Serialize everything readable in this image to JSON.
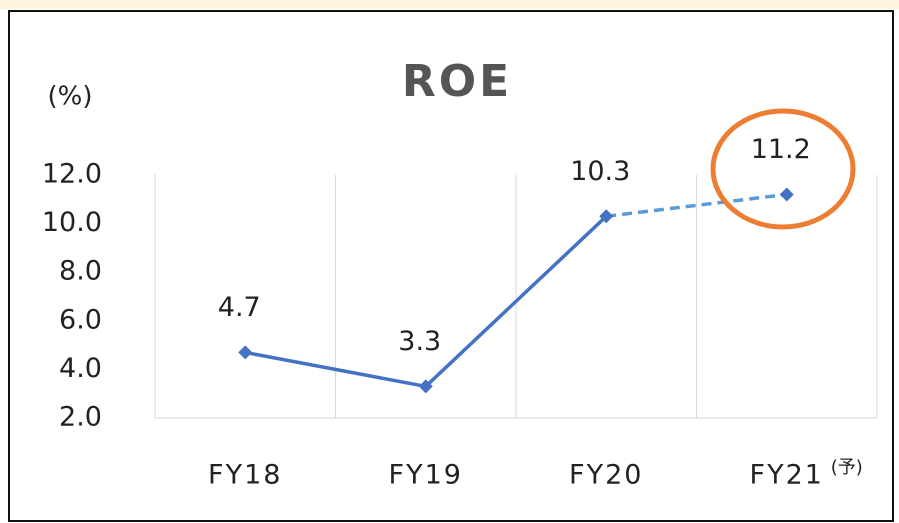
{
  "chart_data": {
    "type": "line",
    "title": "ROE",
    "y_axis_label": "(%)",
    "categories": [
      "FY18",
      "FY19",
      "FY20",
      "FY21"
    ],
    "forecast_mark": "(予)",
    "series": [
      {
        "name": "ROE",
        "color": "#4472c4",
        "dash_color": "#5b9bd5",
        "values": [
          4.7,
          3.3,
          10.3,
          11.2
        ],
        "segment_styles": [
          "solid",
          "solid",
          "dashed"
        ]
      }
    ],
    "ylim": [
      2,
      12
    ],
    "yticks": [
      {
        "value": 2,
        "label": "2.0"
      },
      {
        "value": 4,
        "label": "4.0"
      },
      {
        "value": 6,
        "label": "6.0"
      },
      {
        "value": 8,
        "label": "8.0"
      },
      {
        "value": 10,
        "label": "10.0"
      },
      {
        "value": 12,
        "label": "12.0"
      }
    ],
    "grid": true
  }
}
